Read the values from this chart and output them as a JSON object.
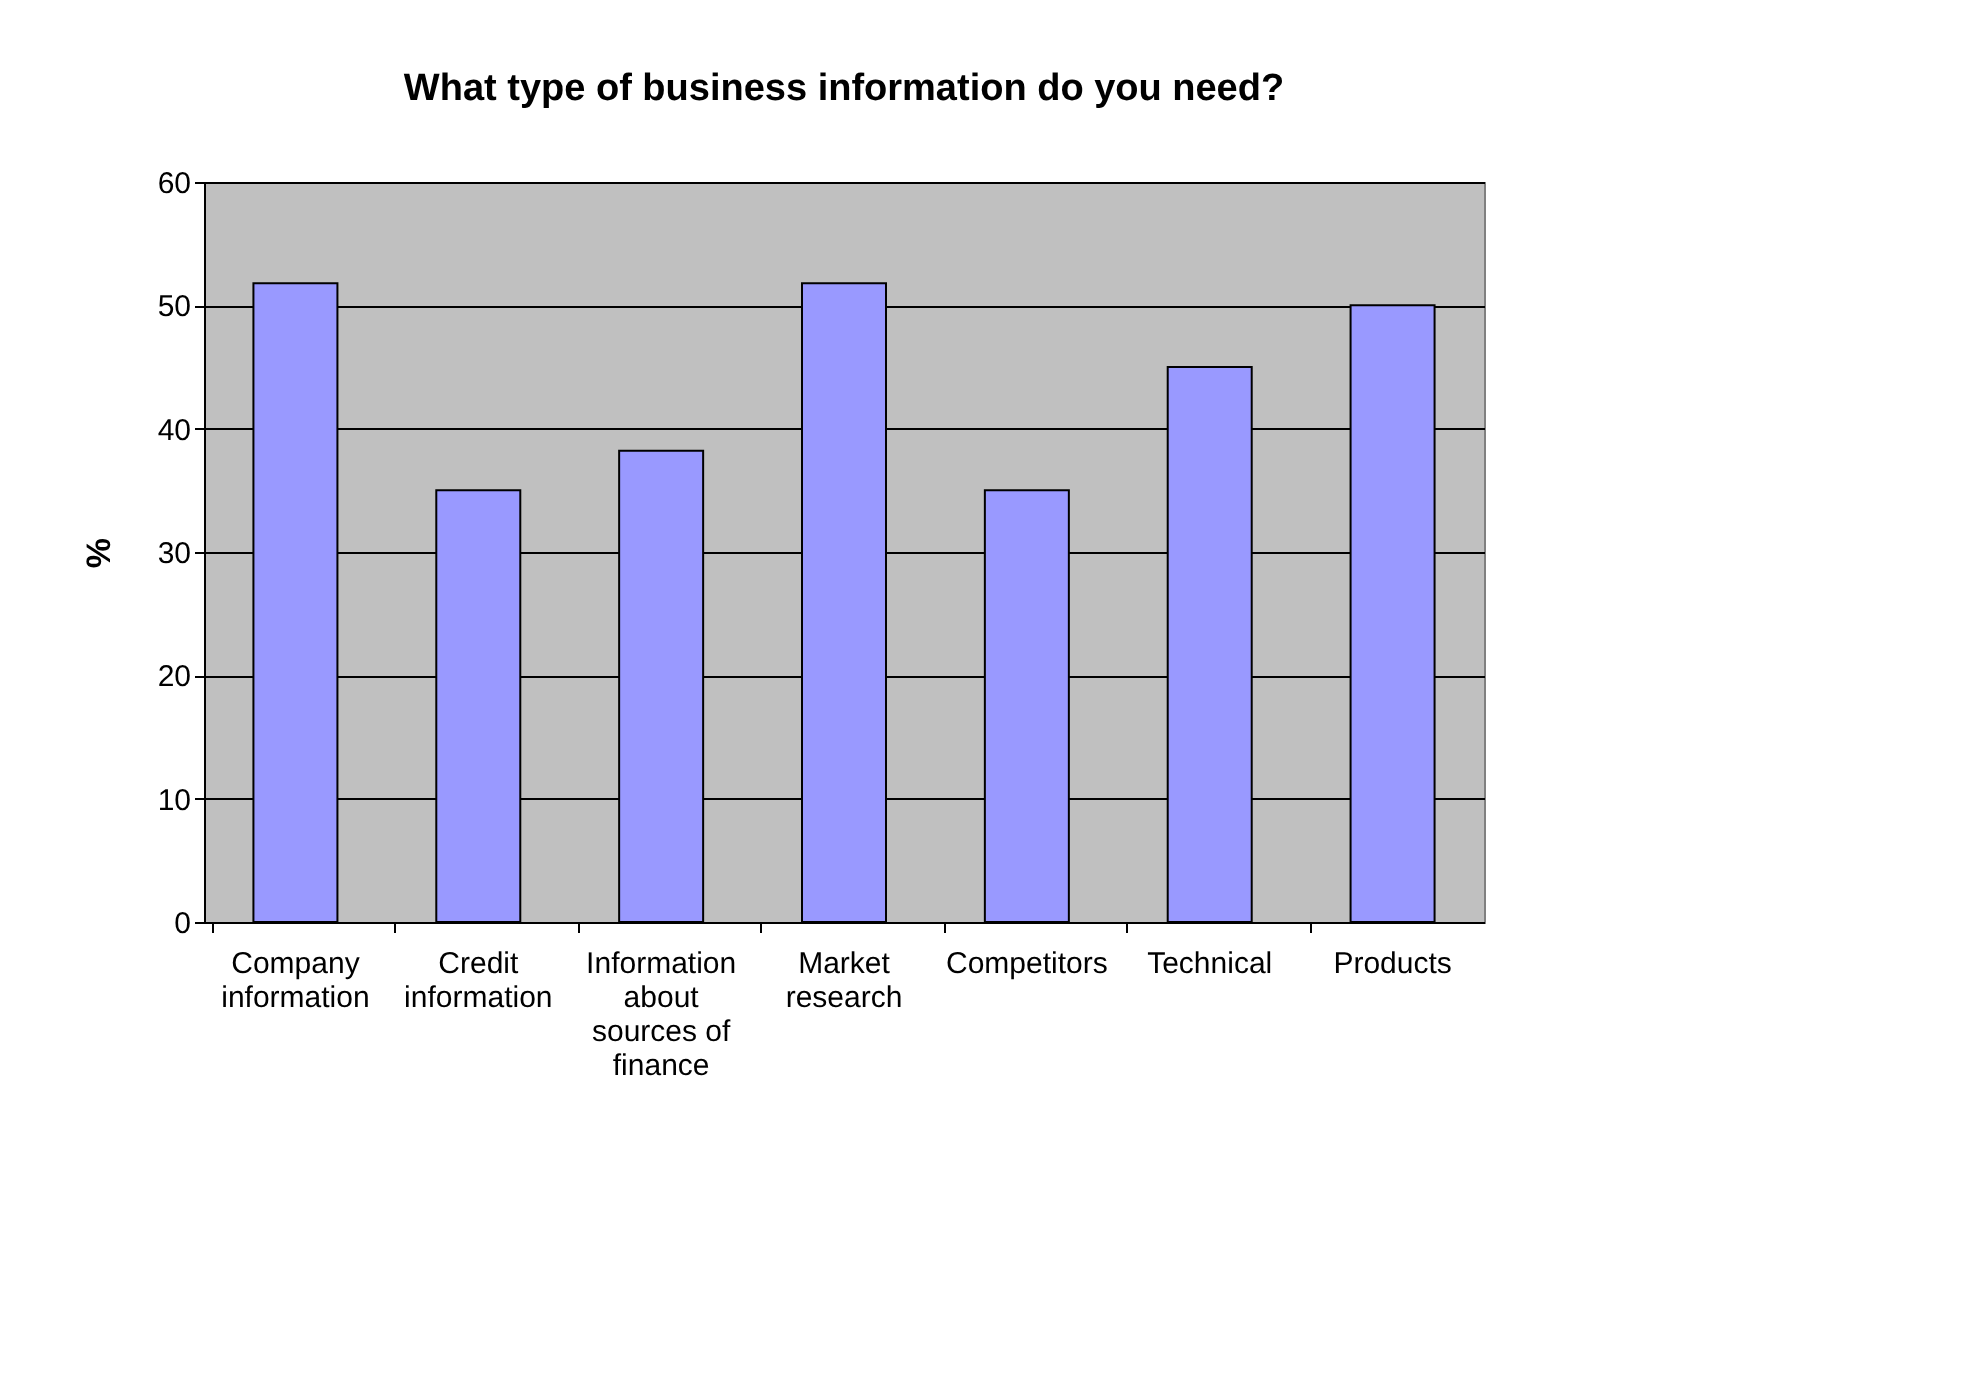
{
  "chart_data": {
    "type": "bar",
    "title": "What type of business information do you need?",
    "ylabel": "%",
    "categories": [
      "Company information",
      "Credit information",
      "Information about sources of finance",
      "Market research",
      "Competitors",
      "Technical",
      "Products"
    ],
    "values": [
      51.8,
      35,
      38.2,
      51.8,
      35,
      45,
      50
    ],
    "color": "#9999ff",
    "ylim": [
      0,
      60
    ],
    "yticks": [
      0,
      10,
      20,
      30,
      40,
      50,
      60
    ],
    "grid": "y"
  }
}
